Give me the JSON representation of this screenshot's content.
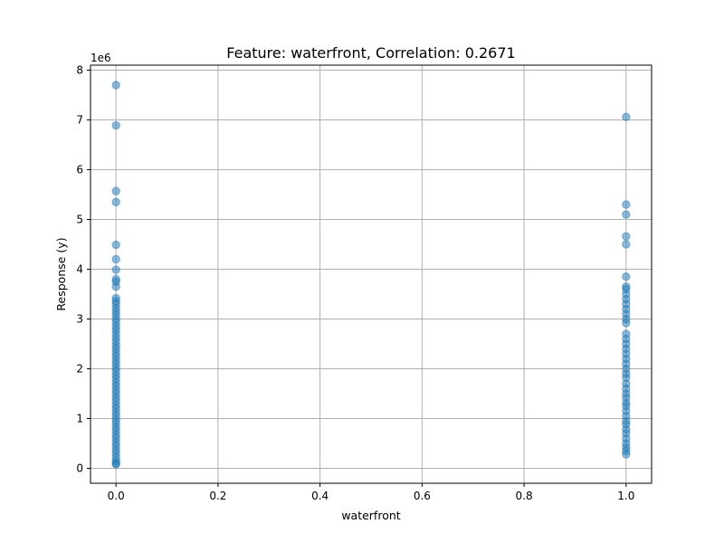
{
  "chart_data": {
    "type": "scatter",
    "title": "Feature: waterfront, Correlation: 0.2671",
    "xlabel": "waterfront",
    "ylabel": "Response (y)",
    "y_offset_label": "1e6",
    "xlim": [
      -0.05,
      1.05
    ],
    "ylim": [
      -0.3,
      8.1
    ],
    "x_ticks": [
      0.0,
      0.2,
      0.4,
      0.6,
      0.8,
      1.0
    ],
    "x_tick_labels": [
      "0.0",
      "0.2",
      "0.4",
      "0.6",
      "0.8",
      "1.0"
    ],
    "y_ticks": [
      0,
      1,
      2,
      3,
      4,
      5,
      6,
      7,
      8
    ],
    "y_tick_labels": [
      "0",
      "1",
      "2",
      "3",
      "4",
      "5",
      "6",
      "7",
      "8"
    ],
    "grid": true,
    "marker_color": "#1f77b4",
    "marker_alpha": 0.5,
    "series": [
      {
        "x_value": 0,
        "y": [
          7.7,
          6.89,
          5.57,
          5.35,
          4.49,
          4.2,
          3.99,
          3.8,
          3.75,
          3.65,
          3.42,
          3.36,
          3.3,
          3.22,
          3.15,
          3.08,
          3.0,
          2.93,
          2.85,
          2.78,
          2.7,
          2.62,
          2.55,
          2.47,
          2.4,
          2.32,
          2.25,
          2.17,
          2.1,
          2.02,
          1.95,
          1.87,
          1.8,
          1.72,
          1.65,
          1.57,
          1.5,
          1.42,
          1.35,
          1.27,
          1.2,
          1.12,
          1.05,
          0.97,
          0.9,
          0.82,
          0.75,
          0.67,
          0.6,
          0.52,
          0.45,
          0.37,
          0.3,
          0.22,
          0.15,
          0.1,
          0.08
        ]
      },
      {
        "x_value": 1,
        "y": [
          7.06,
          5.3,
          5.1,
          4.66,
          4.5,
          3.85,
          3.65,
          3.6,
          3.5,
          3.4,
          3.3,
          3.2,
          3.1,
          3.0,
          2.92,
          2.7,
          2.6,
          2.5,
          2.4,
          2.3,
          2.2,
          2.1,
          2.0,
          1.9,
          1.82,
          1.7,
          1.6,
          1.5,
          1.42,
          1.32,
          1.25,
          1.15,
          1.05,
          0.95,
          0.88,
          0.78,
          0.7,
          0.6,
          0.5,
          0.42,
          0.35,
          0.28
        ]
      }
    ]
  }
}
